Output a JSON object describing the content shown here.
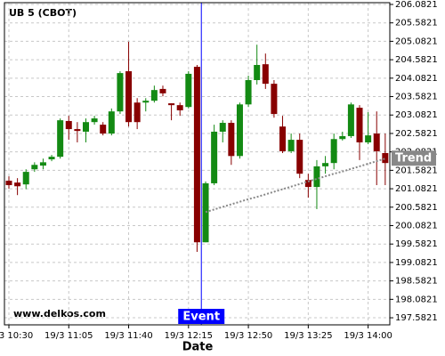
{
  "chart_data": {
    "type": "candlestick",
    "title": "UB 5 (CBOT)",
    "x_label": "Date",
    "watermark": "www.delkos.com",
    "categories": [
      "19/3 10:30",
      null,
      null,
      null,
      null,
      null,
      null,
      "19/3 11:05",
      null,
      null,
      null,
      null,
      null,
      null,
      "19/3 11:40",
      null,
      null,
      null,
      null,
      null,
      null,
      "19/3 12:15",
      null,
      null,
      null,
      null,
      null,
      null,
      "19/3 12:50",
      null,
      null,
      null,
      null,
      null,
      null,
      "19/3 13:25",
      null,
      null,
      null,
      null,
      null,
      null,
      "19/3 14:00",
      null,
      null
    ],
    "open": [
      201.3,
      201.25,
      201.2,
      201.61,
      201.71,
      201.88,
      201.95,
      202.92,
      202.7,
      202.63,
      202.89,
      202.82,
      202.58,
      203.18,
      204.27,
      203.42,
      203.42,
      203.47,
      203.79,
      203.4,
      203.35,
      203.3,
      204.39,
      199.63,
      201.23,
      202.63,
      202.87,
      201.97,
      203.37,
      204.03,
      204.46,
      203.93,
      202.77,
      202.1,
      202.41,
      201.32,
      201.13,
      201.69,
      201.78,
      202.43,
      202.51,
      203.28,
      202.34,
      202.58,
      202.05
    ],
    "high": [
      201.42,
      201.37,
      201.61,
      201.8,
      201.9,
      202.0,
      202.99,
      203.06,
      202.89,
      202.99,
      203.06,
      202.89,
      203.26,
      204.27,
      205.07,
      203.54,
      203.54,
      203.88,
      203.88,
      203.4,
      203.42,
      204.27,
      204.44,
      201.28,
      202.82,
      202.94,
      202.94,
      203.42,
      204.15,
      204.99,
      204.75,
      204.03,
      203.06,
      202.58,
      202.58,
      201.49,
      201.86,
      201.97,
      202.58,
      202.63,
      203.42,
      203.35,
      203.16,
      203.18,
      202.58
    ],
    "low": [
      201.08,
      200.91,
      201.07,
      201.54,
      201.61,
      201.83,
      201.9,
      202.41,
      202.34,
      202.34,
      202.82,
      202.53,
      202.53,
      203.11,
      202.77,
      202.7,
      203.18,
      203.42,
      203.59,
      202.94,
      203.06,
      203.26,
      199.37,
      199.63,
      201.18,
      202.34,
      201.73,
      201.9,
      203.3,
      203.91,
      203.79,
      203.01,
      202.05,
      202.05,
      201.37,
      200.84,
      200.53,
      201.49,
      201.61,
      202.39,
      202.46,
      201.86,
      202.29,
      201.18,
      201.18
    ],
    "close": [
      201.18,
      201.15,
      201.54,
      201.73,
      201.8,
      201.95,
      202.94,
      202.7,
      202.65,
      202.89,
      202.99,
      202.58,
      203.18,
      204.22,
      202.89,
      202.89,
      203.47,
      203.76,
      203.67,
      203.35,
      203.21,
      204.2,
      199.63,
      201.23,
      202.63,
      202.87,
      201.97,
      203.37,
      204.03,
      204.44,
      203.93,
      203.11,
      202.1,
      202.41,
      201.49,
      201.13,
      201.69,
      201.78,
      202.43,
      202.51,
      203.37,
      202.34,
      202.53,
      202.1,
      201.78
    ],
    "up_color": "#138a13",
    "down_color": "#880000",
    "trend": {
      "name": "Trend",
      "color": "#888888",
      "values": [
        null,
        null,
        null,
        null,
        null,
        null,
        null,
        null,
        null,
        null,
        null,
        null,
        null,
        null,
        null,
        null,
        null,
        null,
        null,
        null,
        null,
        null,
        null,
        200.45,
        200.52,
        200.59,
        200.66,
        200.73,
        200.8,
        200.86,
        200.93,
        201.0,
        201.07,
        201.14,
        201.21,
        201.28,
        201.35,
        201.42,
        201.49,
        201.55,
        201.62,
        201.69,
        201.76,
        201.83,
        201.9
      ]
    },
    "event": {
      "label": "Event",
      "color": "#0000ff"
    },
    "ylim": [
      197.39,
      206.13
    ],
    "yticks": [
      197.5821,
      198.0821,
      198.5821,
      199.0821,
      199.5821,
      200.0821,
      200.5821,
      201.0821,
      201.5821,
      202.0821,
      202.5821,
      203.0821,
      203.5821,
      204.0821,
      204.5821,
      205.0821,
      205.5821,
      206.0821
    ],
    "grid": true
  }
}
